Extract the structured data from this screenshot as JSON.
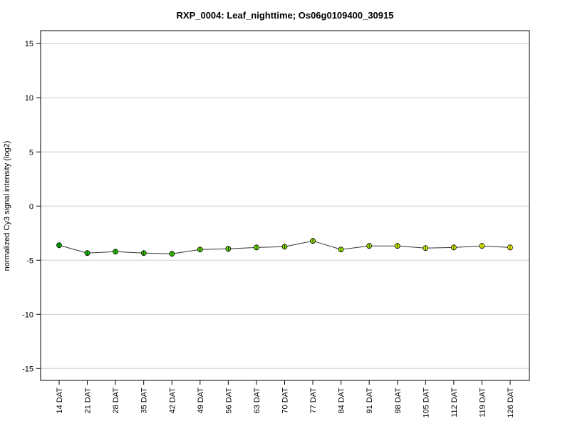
{
  "chart_data": {
    "type": "line",
    "title": "RXP_0004: Leaf_nighttime; Os06g0109400_30915",
    "xlabel": "",
    "ylabel": "normalized Cy3 signal intensity (log2)",
    "ylim": [
      -16.1,
      16.2
    ],
    "yticks": [
      -15,
      -10,
      -5,
      0,
      5,
      10,
      15
    ],
    "grid": "horizontal",
    "categories": [
      "14 DAT",
      "21 DAT",
      "28 DAT",
      "35 DAT",
      "42 DAT",
      "49 DAT",
      "56 DAT",
      "63 DAT",
      "70 DAT",
      "77 DAT",
      "84 DAT",
      "91 DAT",
      "98 DAT",
      "105 DAT",
      "112 DAT",
      "119 DAT",
      "126 DAT"
    ],
    "series": [
      {
        "name": "Os06g0109400_30915",
        "values": [
          -3.62,
          -4.34,
          -4.21,
          -4.34,
          -4.41,
          -4.01,
          -3.95,
          -3.82,
          -3.75,
          -3.22,
          -4.01,
          -3.68,
          -3.68,
          -3.88,
          -3.82,
          -3.68,
          -3.82
        ]
      }
    ],
    "colors": {
      "start": "#00c000",
      "end": "#ffff00",
      "line": "#333333",
      "grid": "#cccccc"
    }
  }
}
